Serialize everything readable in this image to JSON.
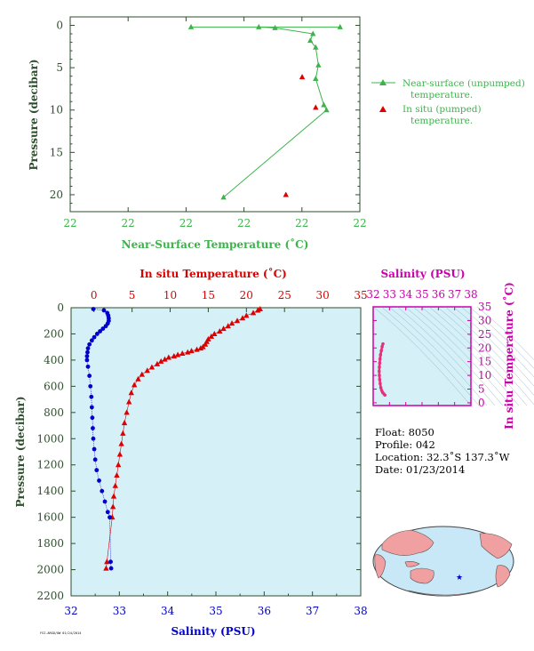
{
  "colors": {
    "green": "#3cb44b",
    "red": "#dd0000",
    "blue": "#0000cc",
    "darkgreen": "#2e4e2e",
    "magenta": "#cc00aa",
    "pink": "#e8307a",
    "panel_bg": "#d6f0f8",
    "land": "#f0a0a0",
    "ocean": "#c8e8f8"
  },
  "top_chart": {
    "ylabel": "Pressure (decibar)",
    "xlabel": "Near-Surface Temperature (˚C)",
    "x_ticks": [
      "22",
      "22",
      "22",
      "22",
      "22",
      "22"
    ],
    "y_ticks": [
      "0",
      "5",
      "10",
      "15",
      "20"
    ],
    "legend": {
      "unpumped_line1": "Near-surface (unpumped)",
      "unpumped_line2": "temperature.",
      "pumped_line1": "In situ (pumped)",
      "pumped_line2": "temperature."
    }
  },
  "main_chart": {
    "ylabel": "Pressure (decibar)",
    "top_xlabel": "In situ Temperature (˚C)",
    "bottom_xlabel": "Salinity (PSU)",
    "temp_ticks": [
      "0",
      "5",
      "10",
      "15",
      "20",
      "25",
      "30",
      "35"
    ],
    "sal_ticks": [
      "32",
      "33",
      "34",
      "35",
      "36",
      "37",
      "38"
    ],
    "y_ticks": [
      "0",
      "200",
      "400",
      "600",
      "800",
      "1000",
      "1200",
      "1400",
      "1600",
      "1800",
      "2000",
      "2200"
    ]
  },
  "ts_chart": {
    "top_label": "Salinity (PSU)",
    "right_label": "In situ Temperature (˚C)",
    "sal_ticks": [
      "32",
      "33",
      "34",
      "35",
      "36",
      "37",
      "38"
    ],
    "temp_ticks": [
      "0",
      "5",
      "10",
      "15",
      "20",
      "25",
      "30",
      "35"
    ]
  },
  "float_info": {
    "float": "Float:  8050",
    "profile": "Profile:  042",
    "location": "Location:  32.3˚S  137.3˚W",
    "date": "Date:  01/23/2014"
  },
  "chart_data": [
    {
      "type": "line",
      "name": "near-surface",
      "ylabel": "Pressure (decibar)",
      "xlabel": "Near-Surface Temperature (˚C)",
      "ylim": [
        22,
        -1
      ],
      "series": [
        {
          "name": "Near-surface (unpumped) temperature.",
          "points": [
            [
              0.0,
              0.2
            ],
            [
              0.55,
              0.2
            ],
            [
              0.25,
              0.2
            ],
            [
              0.31,
              0.3
            ],
            [
              0.45,
              1.0
            ],
            [
              0.44,
              1.8
            ],
            [
              0.46,
              2.6
            ],
            [
              0.47,
              4.7
            ],
            [
              0.46,
              6.3
            ],
            [
              0.49,
              9.4
            ],
            [
              0.5,
              10.0
            ],
            [
              0.12,
              20.3
            ]
          ]
        },
        {
          "name": "In situ (pumped) temperature.",
          "points": [
            [
              0.41,
              6.1
            ],
            [
              0.46,
              9.7
            ],
            [
              0.35,
              20.0
            ]
          ]
        }
      ]
    },
    {
      "type": "line",
      "name": "profile",
      "ylabel": "Pressure (decibar)",
      "xlabel_top": "In situ Temperature (˚C)",
      "xlabel_bottom": "Salinity (PSU)",
      "temp_range": [
        -3,
        35
      ],
      "sal_range": [
        32,
        38
      ],
      "ylim": [
        2200,
        0
      ],
      "series": [
        {
          "name": "In situ Temperature",
          "points": [
            [
              21.8,
              10
            ],
            [
              21.5,
              20
            ],
            [
              20.9,
              40
            ],
            [
              20.0,
              60
            ],
            [
              19.5,
              80
            ],
            [
              18.8,
              100
            ],
            [
              18.1,
              120
            ],
            [
              17.6,
              140
            ],
            [
              17.0,
              160
            ],
            [
              16.5,
              180
            ],
            [
              15.8,
              200
            ],
            [
              15.4,
              220
            ],
            [
              15.0,
              240
            ],
            [
              14.8,
              260
            ],
            [
              14.6,
              280
            ],
            [
              14.3,
              300
            ],
            [
              14.0,
              310
            ],
            [
              13.5,
              320
            ],
            [
              12.8,
              330
            ],
            [
              12.3,
              340
            ],
            [
              11.6,
              350
            ],
            [
              11.0,
              360
            ],
            [
              10.5,
              370
            ],
            [
              9.8,
              380
            ],
            [
              9.3,
              395
            ],
            [
              8.8,
              410
            ],
            [
              8.3,
              430
            ],
            [
              7.6,
              455
            ],
            [
              7.0,
              480
            ],
            [
              6.3,
              510
            ],
            [
              5.8,
              545
            ],
            [
              5.3,
              590
            ],
            [
              4.9,
              650
            ],
            [
              4.6,
              720
            ],
            [
              4.3,
              800
            ],
            [
              4.0,
              880
            ],
            [
              3.8,
              960
            ],
            [
              3.6,
              1040
            ],
            [
              3.4,
              1120
            ],
            [
              3.2,
              1200
            ],
            [
              3.0,
              1280
            ],
            [
              2.8,
              1360
            ],
            [
              2.6,
              1440
            ],
            [
              2.5,
              1520
            ],
            [
              2.4,
              1600
            ],
            [
              1.7,
              1940
            ],
            [
              1.6,
              1990
            ]
          ]
        },
        {
          "name": "Salinity",
          "points": [
            [
              32.46,
              10
            ],
            [
              32.68,
              20
            ],
            [
              32.75,
              40
            ],
            [
              32.77,
              60
            ],
            [
              32.78,
              80
            ],
            [
              32.78,
              100
            ],
            [
              32.76,
              120
            ],
            [
              32.72,
              140
            ],
            [
              32.66,
              160
            ],
            [
              32.6,
              180
            ],
            [
              32.54,
              200
            ],
            [
              32.48,
              225
            ],
            [
              32.43,
              250
            ],
            [
              32.38,
              280
            ],
            [
              32.35,
              310
            ],
            [
              32.34,
              340
            ],
            [
              32.33,
              370
            ],
            [
              32.33,
              400
            ],
            [
              32.35,
              450
            ],
            [
              32.38,
              520
            ],
            [
              32.4,
              600
            ],
            [
              32.42,
              680
            ],
            [
              32.43,
              760
            ],
            [
              32.44,
              840
            ],
            [
              32.45,
              920
            ],
            [
              32.46,
              1000
            ],
            [
              32.48,
              1080
            ],
            [
              32.5,
              1160
            ],
            [
              32.53,
              1240
            ],
            [
              32.58,
              1320
            ],
            [
              32.64,
              1400
            ],
            [
              32.7,
              1480
            ],
            [
              32.76,
              1560
            ],
            [
              32.8,
              1600
            ],
            [
              32.82,
              1940
            ],
            [
              32.83,
              1990
            ]
          ]
        }
      ]
    },
    {
      "type": "scatter",
      "name": "TS",
      "xlabel": "Salinity (PSU)",
      "ylabel": "In situ Temperature (˚C)",
      "xlim": [
        32,
        38
      ],
      "ylim": [
        -1,
        35
      ],
      "series": [
        {
          "name": "TS",
          "points": [
            [
              32.6,
              21.5
            ],
            [
              32.55,
              20.5
            ],
            [
              32.5,
              19.0
            ],
            [
              32.45,
              17.5
            ],
            [
              32.42,
              16.0
            ],
            [
              32.4,
              14.5
            ],
            [
              32.38,
              13.0
            ],
            [
              32.37,
              11.5
            ],
            [
              32.38,
              10.0
            ],
            [
              32.4,
              8.5
            ],
            [
              32.43,
              7.0
            ],
            [
              32.47,
              5.5
            ],
            [
              32.52,
              4.5
            ],
            [
              32.58,
              3.8
            ],
            [
              32.66,
              3.2
            ],
            [
              32.72,
              2.8
            ]
          ]
        }
      ]
    }
  ],
  "map": {
    "marker": "★"
  },
  "footer": "FSI-ARGO/UW  01/24/2014"
}
